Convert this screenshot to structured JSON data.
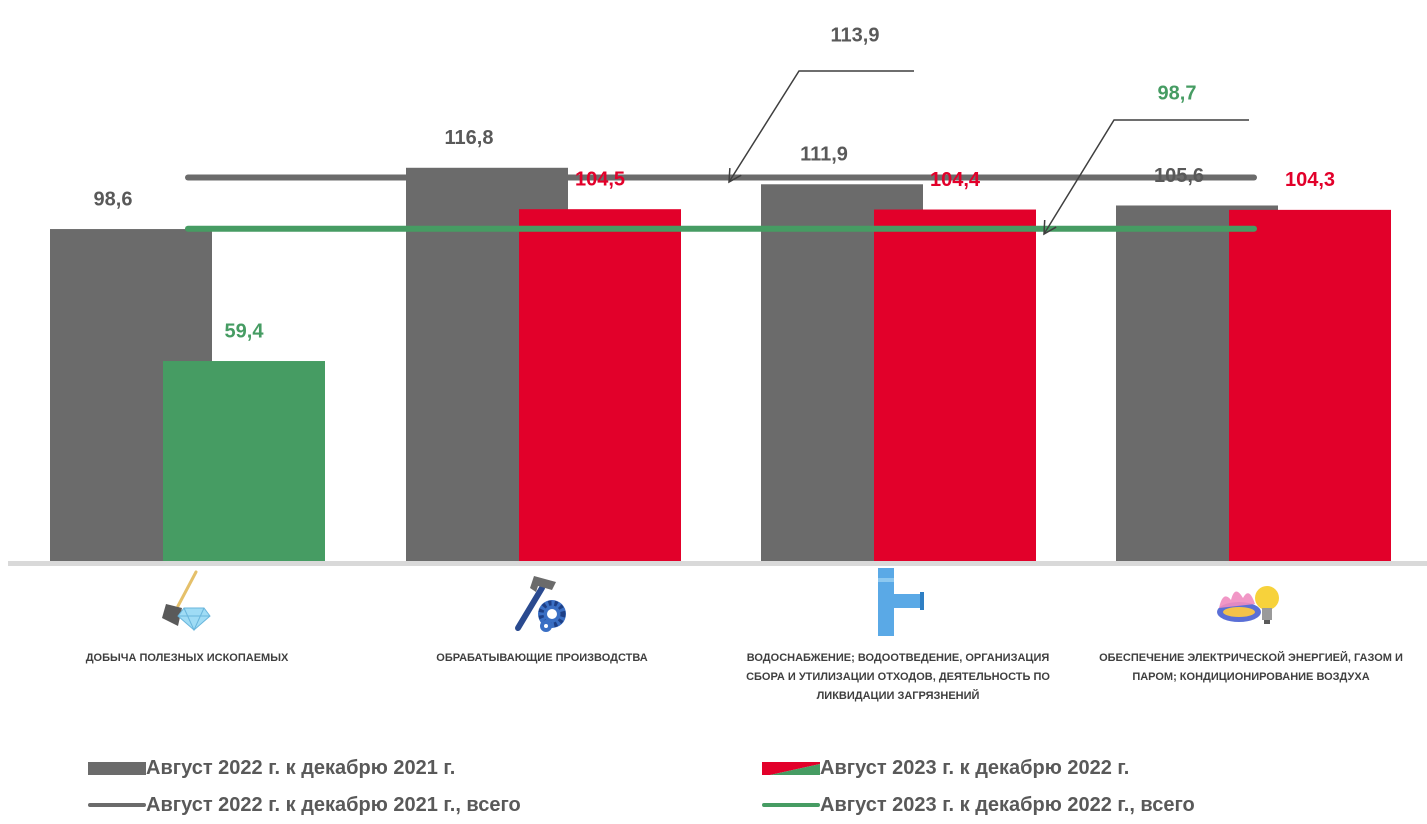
{
  "chart_data": {
    "type": "bar",
    "categories": [
      "Добыча полезных ископаемых",
      "Обрабатывающие производства",
      "Водоснабжение; водоотведение, организация сбора и утилизации отходов, деятельность по ликвидации загрязнений",
      "Обеспечение электрической энергией, газом и паром; кондиционирование воздуха"
    ],
    "series": [
      {
        "name": "Август 2022 г. к декабрю 2021 г.",
        "values": [
          98.6,
          116.8,
          111.9,
          105.6
        ],
        "labels": [
          "98,6",
          "116,8",
          "111,9",
          "105,6"
        ],
        "color": "#6b6b6b",
        "label_color": "#595959"
      },
      {
        "name": "Август 2023 г. к декабрю 2022 г.",
        "values": [
          59.4,
          104.5,
          104.4,
          104.3
        ],
        "labels": [
          "59,4",
          "104,5",
          "104,4",
          "104,3"
        ],
        "colors": [
          "#469c63",
          "#e2002a",
          "#e2002a",
          "#e2002a"
        ],
        "label_colors": [
          "#469c63",
          "#e2002a",
          "#e2002a",
          "#e2002a"
        ]
      }
    ],
    "reference_lines": [
      {
        "name": "Август 2022 г. к декабрю 2021 г., всего",
        "value": 113.9,
        "label": "113,9",
        "color": "#6b6b6b",
        "label_color": "#595959"
      },
      {
        "name": "Август 2023 г. к декабрю 2022 г., всего",
        "value": 98.7,
        "label": "98,7",
        "color": "#469c63",
        "label_color": "#469c63"
      }
    ],
    "ylim": [
      0,
      140
    ],
    "grid": false,
    "legend_position": "bottom"
  },
  "icons": [
    "shovel-diamond-icon",
    "hammer-gear-icon",
    "water-pipe-icon",
    "gas-flame-lightbulb-icon"
  ],
  "colors": {
    "gray": "#6b6b6b",
    "red": "#e2002a",
    "green": "#469c63",
    "axis": "#d9d9d9"
  }
}
